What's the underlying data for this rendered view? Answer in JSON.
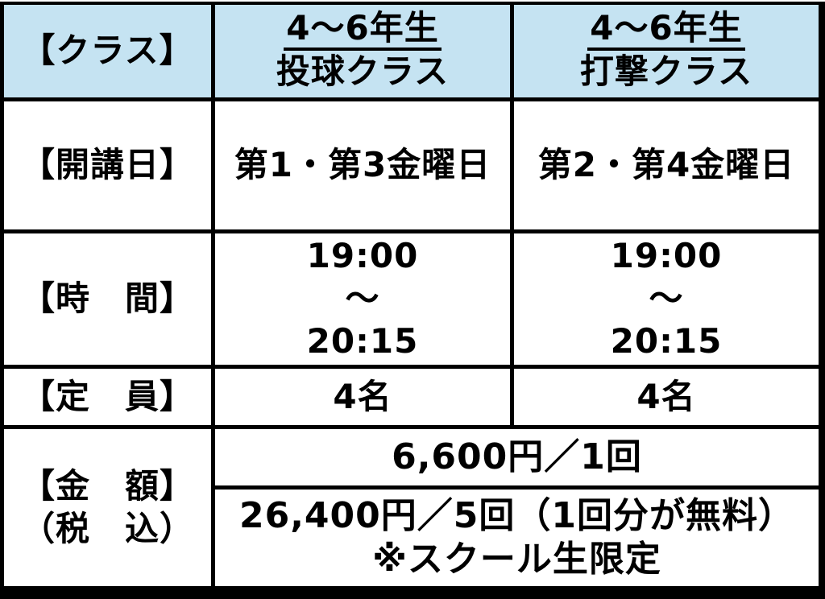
{
  "colors": {
    "header_bg": "#c5e3f2",
    "cell_bg": "#ffffff",
    "border": "#000000",
    "text": "#000000"
  },
  "table": {
    "class_row": {
      "label": "【クラス】",
      "pitching": {
        "grade": "4～6年生",
        "name": "投球クラス"
      },
      "batting": {
        "grade": "4～6年生",
        "name": "打撃クラス"
      }
    },
    "date_row": {
      "label": "【開講日】",
      "pitching": "第1・第3金曜日",
      "batting": "第2・第4金曜日"
    },
    "time_row": {
      "label": "【時　間】",
      "pitching": {
        "start": "19:00",
        "separator": "～",
        "end": "20:15"
      },
      "batting": {
        "start": "19:00",
        "separator": "～",
        "end": "20:15"
      }
    },
    "capacity_row": {
      "label": "【定　員】",
      "pitching": "4名",
      "batting": "4名"
    },
    "price_row": {
      "label_line1": "【金　額】",
      "label_line2": "（税　込）",
      "per_session": "6,600円／1回",
      "bundle": "26,400円／5回（1回分が無料）",
      "bundle_note": "※スクール生限定"
    }
  }
}
